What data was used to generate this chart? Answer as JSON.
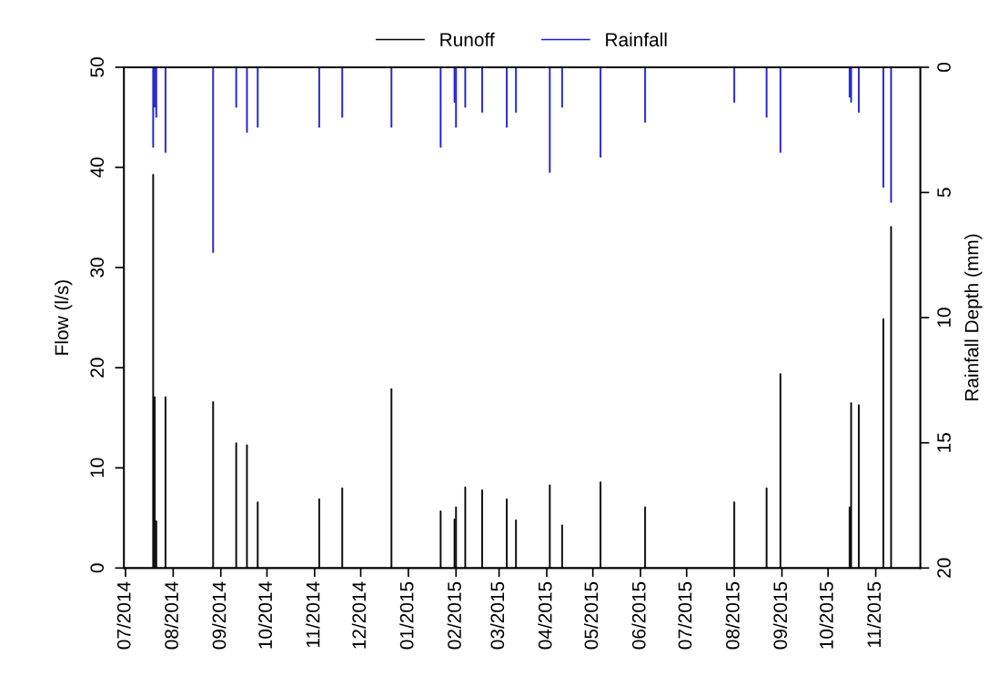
{
  "chart_data": {
    "type": "bar",
    "ylabel": "Flow (l/s)",
    "y2label": "Rainfall Depth (mm)",
    "x": [
      "2014-07-19",
      "2014-07-20",
      "2014-07-21",
      "2014-07-27",
      "2014-08-27",
      "2014-09-11",
      "2014-09-18",
      "2014-09-25",
      "2014-11-04",
      "2014-11-19",
      "2014-12-21",
      "2015-01-22",
      "2015-01-31",
      "2015-02-01",
      "2015-02-07",
      "2015-02-18",
      "2015-03-06",
      "2015-03-12",
      "2015-04-03",
      "2015-04-11",
      "2015-05-06",
      "2015-06-04",
      "2015-08-01",
      "2015-08-22",
      "2015-08-31",
      "2015-10-15",
      "2015-10-16",
      "2015-10-21",
      "2015-11-06",
      "2015-11-11"
    ],
    "series": [
      {
        "name": "Runoff",
        "color": "#000000",
        "values": [
          39.3,
          17.1,
          4.7,
          17.1,
          16.6,
          12.5,
          12.3,
          6.6,
          6.9,
          8.0,
          17.9,
          5.7,
          4.9,
          6.1,
          8.1,
          7.8,
          6.9,
          4.8,
          8.3,
          4.3,
          8.6,
          6.1,
          6.6,
          8.0,
          19.4,
          6.1,
          16.5,
          16.3,
          24.9,
          34.1
        ]
      },
      {
        "name": "Rainfall",
        "color": "#1c1ccc",
        "axis": "y2",
        "values": [
          3.2,
          1.6,
          2.0,
          3.4,
          7.4,
          1.6,
          2.6,
          2.4,
          2.4,
          2.0,
          2.4,
          3.2,
          1.4,
          2.4,
          1.6,
          1.8,
          2.4,
          1.8,
          4.2,
          1.6,
          3.6,
          2.2,
          1.4,
          2.0,
          3.4,
          1.2,
          1.4,
          1.8,
          4.8,
          5.4
        ]
      }
    ],
    "xlim": [
      "2014-06-30",
      "2015-11-30"
    ],
    "xticks": [
      {
        "value": "2014-07-01",
        "label": "07/2014"
      },
      {
        "value": "2014-08-01",
        "label": "08/2014"
      },
      {
        "value": "2014-09-01",
        "label": "09/2014"
      },
      {
        "value": "2014-10-01",
        "label": "10/2014"
      },
      {
        "value": "2014-11-01",
        "label": "11/2014"
      },
      {
        "value": "2014-12-01",
        "label": "12/2014"
      },
      {
        "value": "2015-01-01",
        "label": "01/2015"
      },
      {
        "value": "2015-02-01",
        "label": "02/2015"
      },
      {
        "value": "2015-03-01",
        "label": "03/2015"
      },
      {
        "value": "2015-04-01",
        "label": "04/2015"
      },
      {
        "value": "2015-05-01",
        "label": "05/2015"
      },
      {
        "value": "2015-06-01",
        "label": "06/2015"
      },
      {
        "value": "2015-07-01",
        "label": "07/2015"
      },
      {
        "value": "2015-08-01",
        "label": "08/2015"
      },
      {
        "value": "2015-09-01",
        "label": "09/2015"
      },
      {
        "value": "2015-10-01",
        "label": "10/2015"
      },
      {
        "value": "2015-11-01",
        "label": "11/2015"
      }
    ],
    "ylim": [
      0,
      50
    ],
    "yticks": [
      0,
      10,
      20,
      30,
      40,
      50
    ],
    "y2lim": [
      20,
      0
    ],
    "y2ticks": [
      0,
      5,
      10,
      15,
      20
    ],
    "grid": false,
    "legend": "top"
  }
}
